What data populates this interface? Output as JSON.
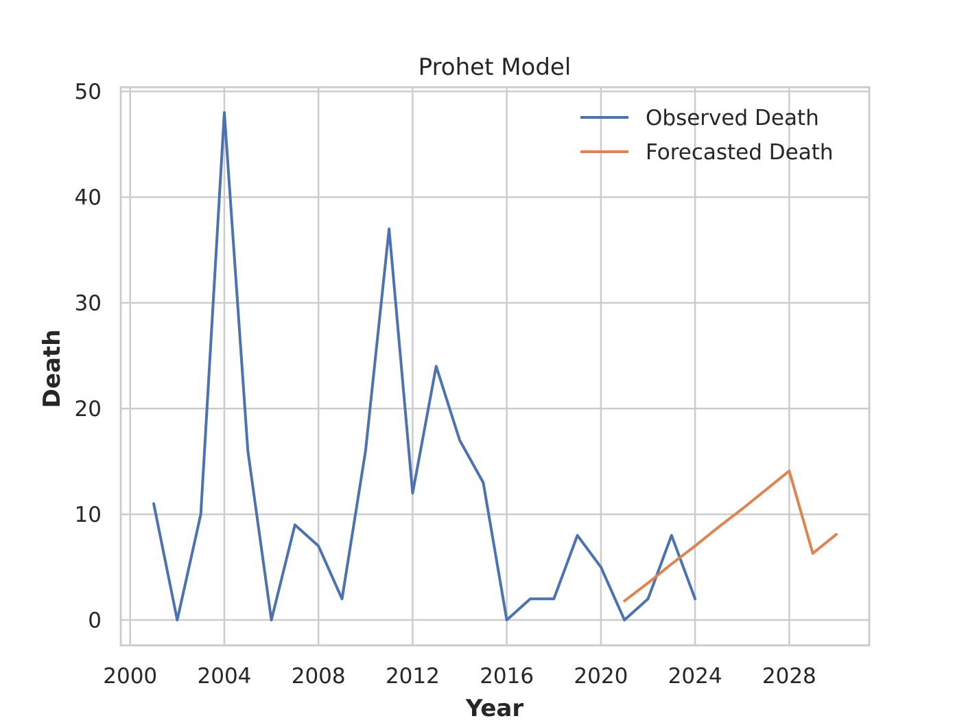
{
  "chart_data": {
    "type": "line",
    "title": "Prohet Model",
    "xlabel": "Year",
    "ylabel": "Death",
    "xlim": [
      1999.6,
      2031.4
    ],
    "ylim": [
      -2.4,
      50.4
    ],
    "x_ticks": [
      2000,
      2004,
      2008,
      2012,
      2016,
      2020,
      2024,
      2028
    ],
    "y_ticks": [
      0,
      10,
      20,
      30,
      40,
      50
    ],
    "grid": true,
    "legend_position": "top-right",
    "series": [
      {
        "name": "Observed Death",
        "color": "#4c72b0",
        "x": [
          2001,
          2002,
          2003,
          2004,
          2005,
          2006,
          2007,
          2008,
          2009,
          2010,
          2011,
          2012,
          2013,
          2014,
          2015,
          2016,
          2017,
          2018,
          2019,
          2020,
          2021,
          2022,
          2023,
          2024
        ],
        "y": [
          11,
          0,
          10,
          48,
          16,
          0,
          9,
          7,
          2,
          16,
          37,
          12,
          24,
          17,
          13,
          0,
          2,
          2,
          8,
          5,
          0,
          2,
          8,
          2
        ]
      },
      {
        "name": "Forecasted Death",
        "color": "#dd8452",
        "x": [
          2021,
          2022,
          2023,
          2024,
          2025,
          2026,
          2027,
          2028,
          2029,
          2030
        ],
        "y": [
          1.8,
          3.5,
          5.3,
          7.0,
          8.8,
          10.5,
          12.3,
          14.1,
          6.3,
          8.1
        ]
      }
    ]
  }
}
